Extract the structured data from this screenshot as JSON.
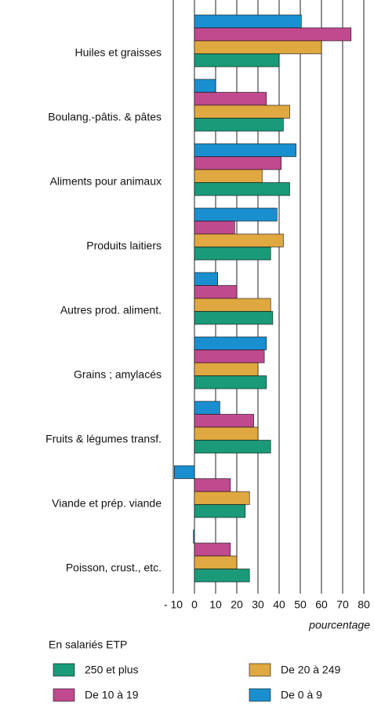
{
  "chart_data": {
    "type": "bar",
    "orientation": "horizontal",
    "categories": [
      "Huiles et graisses",
      "Boulang.-pâtis. & pâtes",
      "Aliments pour animaux",
      "Produits laitiers",
      "Autres prod. aliment.",
      "Grains ; amylacés",
      "Fruits & légumes transf.",
      "Viande et prép. viande",
      "Poisson, crust., etc."
    ],
    "series": [
      {
        "name": "De 0 à 9",
        "color": "#1a8fd0",
        "values": [
          50.5,
          10,
          48,
          39,
          11,
          34,
          12,
          -9.5,
          -0.5
        ]
      },
      {
        "name": "De 10 à 19",
        "color": "#c04a8e",
        "values": [
          74,
          34,
          41,
          19,
          20,
          33,
          28,
          17,
          17
        ]
      },
      {
        "name": "De 20 à 249",
        "color": "#e0a840",
        "values": [
          60,
          45,
          32,
          42,
          36,
          30,
          30,
          26,
          20
        ]
      },
      {
        "name": "250 et plus",
        "color": "#1a9a78",
        "values": [
          40,
          42,
          45,
          36,
          37,
          34,
          36,
          24,
          26
        ]
      }
    ],
    "xlim": [
      -10,
      80
    ],
    "xticks": [
      {
        "value": -10,
        "label": "- 10"
      },
      0,
      10,
      20,
      30,
      40,
      50,
      60,
      70,
      80
    ],
    "xlabel": "pourcentage",
    "legend_title": "En salariés ETP",
    "grid": true
  }
}
